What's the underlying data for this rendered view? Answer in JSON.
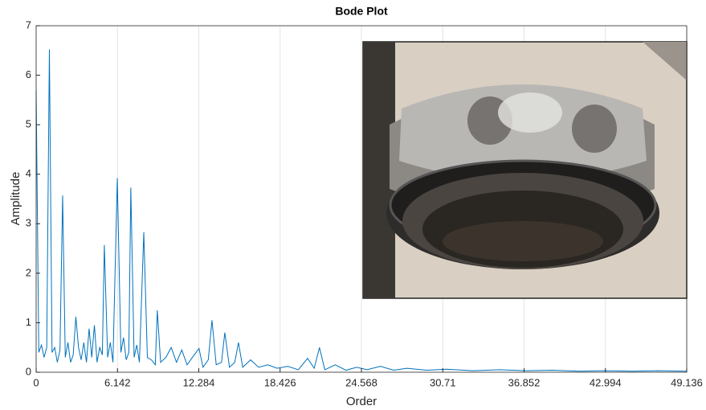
{
  "chart_data": {
    "type": "line",
    "title": "Bode Plot",
    "x_label": "Order",
    "y_label": "Amplitude",
    "xlim": [
      0,
      49.136
    ],
    "xticks": [
      0,
      6.142,
      12.284,
      18.426,
      24.568,
      30.71,
      36.852,
      42.994,
      49.136
    ],
    "ylim": [
      0,
      7
    ],
    "yticks": [
      0,
      1,
      2,
      3,
      4,
      5,
      6,
      7
    ],
    "xgrid": true,
    "color": "#0072bd",
    "x": [
      0,
      0.2,
      0.4,
      0.6,
      0.8,
      1.0,
      1.2,
      1.4,
      1.6,
      1.8,
      2.0,
      2.2,
      2.4,
      2.6,
      2.8,
      3.0,
      3.2,
      3.4,
      3.6,
      3.8,
      4.0,
      4.2,
      4.4,
      4.6,
      4.8,
      5.0,
      5.15,
      5.4,
      5.6,
      5.8,
      6.13,
      6.4,
      6.6,
      6.8,
      7.0,
      7.15,
      7.4,
      7.6,
      7.8,
      8.13,
      8.4,
      8.7,
      9.0,
      9.15,
      9.4,
      9.8,
      10.2,
      10.6,
      11.0,
      11.4,
      11.8,
      12.3,
      12.6,
      13.0,
      13.28,
      13.6,
      14.0,
      14.25,
      14.6,
      15.0,
      15.28,
      15.6,
      16.2,
      16.8,
      17.5,
      18.2,
      19.0,
      19.8,
      20.5,
      21.0,
      21.4,
      21.8,
      22.6,
      23.4,
      24.2,
      25.0,
      26.0,
      27.0,
      28.0,
      29.5,
      31.0,
      33.0,
      35.0,
      37.0,
      39.0,
      41.0,
      43.0,
      45.0,
      47.0,
      49.136
    ],
    "values": [
      5.7,
      0.4,
      0.55,
      0.3,
      0.5,
      6.52,
      0.4,
      0.5,
      0.2,
      0.45,
      3.57,
      0.3,
      0.6,
      0.2,
      0.35,
      1.12,
      0.5,
      0.25,
      0.6,
      0.2,
      0.88,
      0.3,
      0.95,
      0.2,
      0.5,
      0.35,
      2.57,
      0.3,
      0.6,
      0.2,
      3.92,
      0.4,
      0.7,
      0.25,
      0.4,
      3.73,
      0.3,
      0.55,
      0.2,
      2.83,
      0.3,
      0.25,
      0.15,
      1.25,
      0.2,
      0.3,
      0.5,
      0.2,
      0.45,
      0.15,
      0.3,
      0.48,
      0.1,
      0.25,
      1.05,
      0.15,
      0.2,
      0.8,
      0.1,
      0.2,
      0.6,
      0.1,
      0.25,
      0.1,
      0.15,
      0.08,
      0.12,
      0.05,
      0.28,
      0.08,
      0.5,
      0.05,
      0.15,
      0.04,
      0.1,
      0.05,
      0.12,
      0.04,
      0.08,
      0.04,
      0.06,
      0.03,
      0.05,
      0.03,
      0.04,
      0.02,
      0.03,
      0.02,
      0.03,
      0.02
    ]
  }
}
